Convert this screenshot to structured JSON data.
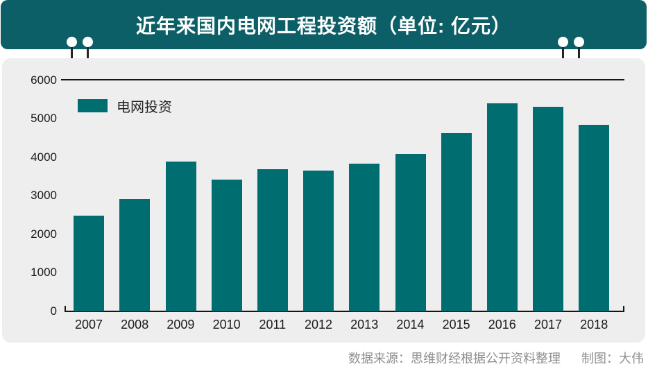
{
  "header": {
    "title": "近年来国内电网工程投资额（单位: 亿元）",
    "banner_color": "#0d5f67"
  },
  "legend": {
    "label": "电网投资",
    "swatch_color": "#006e70"
  },
  "chart_data": {
    "type": "bar",
    "title": "近年来国内电网工程投资额（单位: 亿元）",
    "series_name": "电网投资",
    "categories": [
      "2007",
      "2008",
      "2009",
      "2010",
      "2011",
      "2012",
      "2013",
      "2014",
      "2015",
      "2016",
      "2017",
      "2018"
    ],
    "values": [
      2490,
      2910,
      3890,
      3420,
      3690,
      3660,
      3840,
      4090,
      4630,
      5400,
      5300,
      4840
    ],
    "xlabel": "",
    "ylabel": "",
    "ylim": [
      0,
      6000
    ],
    "yticks": [
      0,
      1000,
      2000,
      3000,
      4000,
      5000,
      6000
    ],
    "bar_color": "#006e70",
    "grid": "single horizontal line at y=6000, baseline axis at 0 with upturned end ticks",
    "legend_position": "top-left inside plot",
    "plot_background": "#eeeeee"
  },
  "footer": {
    "source": "数据来源：思维财经根据公开资料整理",
    "credit": "制图：大伟"
  }
}
